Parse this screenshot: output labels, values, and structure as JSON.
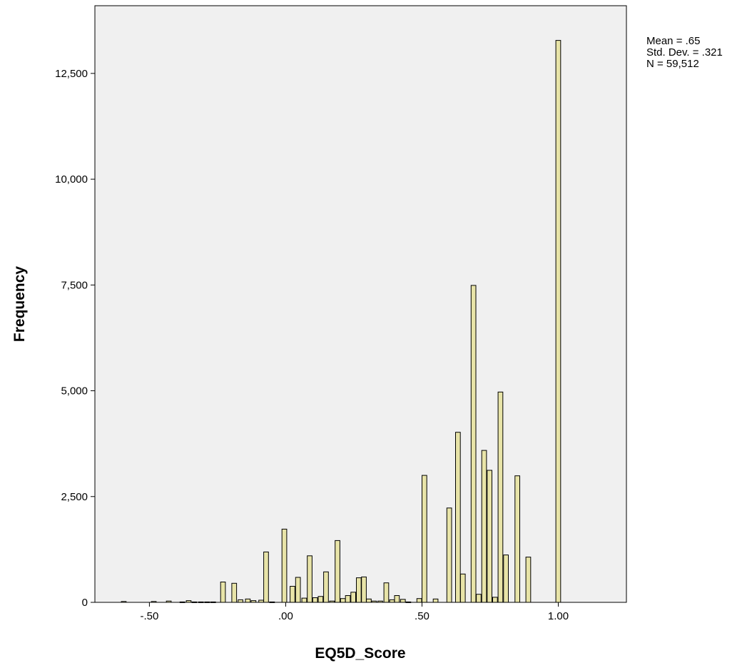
{
  "chart_data": {
    "type": "bar",
    "title": "",
    "xlabel": "EQ5D_Score",
    "ylabel": "Frequency",
    "xlim": [
      -0.7,
      1.25
    ],
    "ylim": [
      0,
      14100
    ],
    "grid": false,
    "plot_background": "#f0f0f0",
    "bar_fill": "#e8e4a8",
    "bar_stroke": "#000000",
    "bin_width": 0.0176,
    "x_ticks": [
      {
        "value": -0.5,
        "label": "-.50"
      },
      {
        "value": 0.0,
        "label": ".00"
      },
      {
        "value": 0.5,
        "label": ".50"
      },
      {
        "value": 1.0,
        "label": "1.00"
      }
    ],
    "y_ticks": [
      {
        "value": 0,
        "label": "0"
      },
      {
        "value": 2500,
        "label": "2,500"
      },
      {
        "value": 5000,
        "label": "5,000"
      },
      {
        "value": 7500,
        "label": "7,500"
      },
      {
        "value": 10000,
        "label": "10,000"
      },
      {
        "value": 12500,
        "label": "12,500"
      }
    ],
    "bins": [
      {
        "x": -0.594,
        "y": 20
      },
      {
        "x": -0.484,
        "y": 20
      },
      {
        "x": -0.429,
        "y": 30
      },
      {
        "x": -0.379,
        "y": 10
      },
      {
        "x": -0.356,
        "y": 40
      },
      {
        "x": -0.335,
        "y": 10
      },
      {
        "x": -0.311,
        "y": 10
      },
      {
        "x": -0.288,
        "y": 10
      },
      {
        "x": -0.266,
        "y": 10
      },
      {
        "x": -0.23,
        "y": 480
      },
      {
        "x": -0.189,
        "y": 450
      },
      {
        "x": -0.166,
        "y": 60
      },
      {
        "x": -0.139,
        "y": 80
      },
      {
        "x": -0.118,
        "y": 40
      },
      {
        "x": -0.09,
        "y": 50
      },
      {
        "x": -0.072,
        "y": 1190
      },
      {
        "x": -0.05,
        "y": 10
      },
      {
        "x": -0.005,
        "y": 1730
      },
      {
        "x": 0.025,
        "y": 380
      },
      {
        "x": 0.045,
        "y": 590
      },
      {
        "x": 0.068,
        "y": 100
      },
      {
        "x": 0.088,
        "y": 1100
      },
      {
        "x": 0.108,
        "y": 110
      },
      {
        "x": 0.128,
        "y": 140
      },
      {
        "x": 0.148,
        "y": 720
      },
      {
        "x": 0.17,
        "y": 30
      },
      {
        "x": 0.19,
        "y": 1460
      },
      {
        "x": 0.21,
        "y": 90
      },
      {
        "x": 0.228,
        "y": 160
      },
      {
        "x": 0.248,
        "y": 240
      },
      {
        "x": 0.268,
        "y": 580
      },
      {
        "x": 0.287,
        "y": 600
      },
      {
        "x": 0.305,
        "y": 80
      },
      {
        "x": 0.324,
        "y": 30
      },
      {
        "x": 0.347,
        "y": 30
      },
      {
        "x": 0.369,
        "y": 460
      },
      {
        "x": 0.39,
        "y": 60
      },
      {
        "x": 0.408,
        "y": 160
      },
      {
        "x": 0.43,
        "y": 70
      },
      {
        "x": 0.45,
        "y": 10
      },
      {
        "x": 0.49,
        "y": 90
      },
      {
        "x": 0.509,
        "y": 3000
      },
      {
        "x": 0.55,
        "y": 80
      },
      {
        "x": 0.6,
        "y": 2230
      },
      {
        "x": 0.632,
        "y": 4020
      },
      {
        "x": 0.65,
        "y": 670
      },
      {
        "x": 0.689,
        "y": 7490
      },
      {
        "x": 0.708,
        "y": 190
      },
      {
        "x": 0.728,
        "y": 3590
      },
      {
        "x": 0.748,
        "y": 3120
      },
      {
        "x": 0.768,
        "y": 120
      },
      {
        "x": 0.788,
        "y": 4970
      },
      {
        "x": 0.808,
        "y": 1120
      },
      {
        "x": 0.85,
        "y": 2990
      },
      {
        "x": 0.89,
        "y": 1070
      },
      {
        "x": 1.0,
        "y": 13280
      }
    ]
  },
  "stats": {
    "mean": "Mean = .65",
    "std_dev": "Std. Dev. = .321",
    "n": "N = 59,512"
  }
}
